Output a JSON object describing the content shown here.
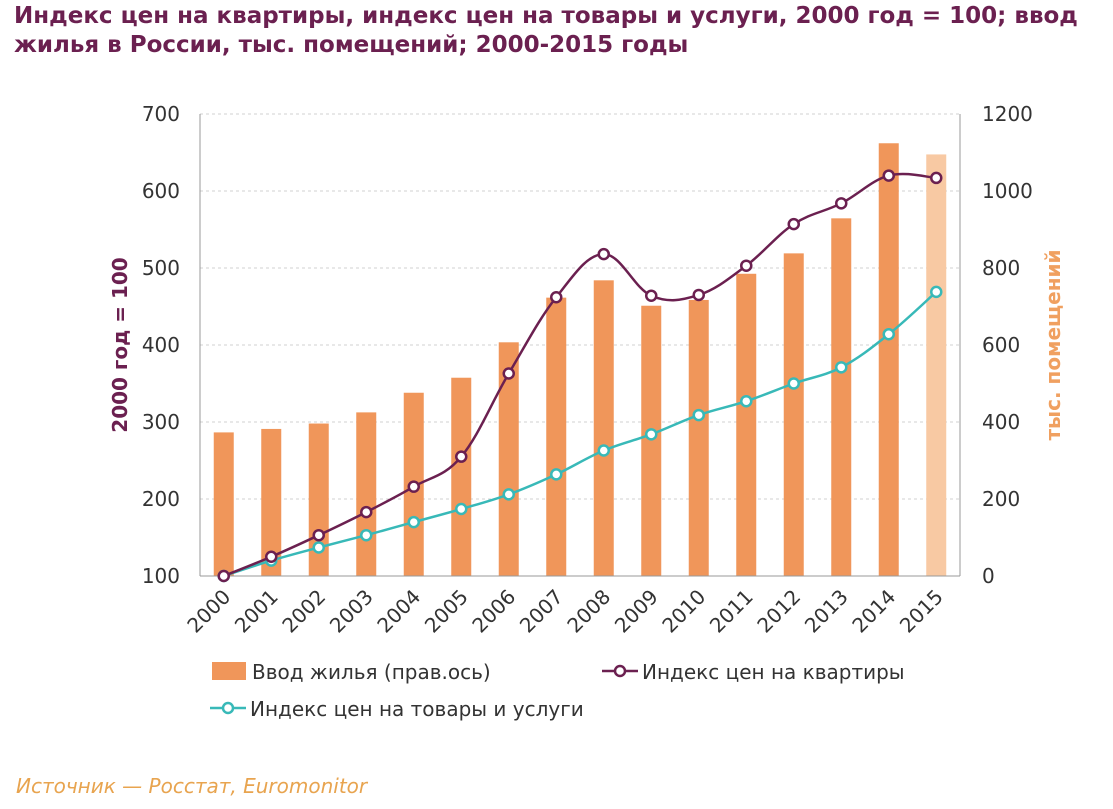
{
  "title": "Индекс цен на квартиры, индекс цен на товары и услуги, 2000 год = 100; ввод жилья в России, тыс. помещений; 2000-2015 годы",
  "source": "Источник — Росстат, Euromonitor",
  "colors": {
    "bar": "#f0965a",
    "bar_projected": "#f8c9a3",
    "apartments_line": "#6b2050",
    "goods_line": "#38b9b8",
    "title": "#6b2050",
    "right_axis_title": "#f0a060",
    "grid": "#d0d0d0"
  },
  "chart_data": {
    "type": "bar+line",
    "x": [
      "2000",
      "2001",
      "2002",
      "2003",
      "2004",
      "2005",
      "2006",
      "2007",
      "2008",
      "2009",
      "2010",
      "2011",
      "2012",
      "2013",
      "2014",
      "2015"
    ],
    "y_left": {
      "label": "2000 год = 100",
      "range": [
        100,
        700
      ],
      "ticks": [
        100,
        200,
        300,
        400,
        500,
        600,
        700
      ]
    },
    "y_right": {
      "label": "тыс. помещений",
      "range": [
        0,
        1200
      ],
      "ticks": [
        0,
        200,
        400,
        600,
        800,
        1000,
        1200
      ]
    },
    "grid": true,
    "legend_position": "bottom",
    "series": [
      {
        "name": "Ввод жилья (прав.ось)",
        "type": "bar",
        "axis": "right",
        "values": [
          373,
          382,
          396,
          425,
          476,
          515,
          607,
          723,
          768,
          702,
          717,
          785,
          838,
          929,
          1124,
          1095
        ]
      },
      {
        "name": "Индекс цен на квартиры",
        "type": "line",
        "axis": "left",
        "values": [
          100,
          125,
          153,
          183,
          216,
          255,
          363,
          462,
          518,
          464,
          465,
          503,
          557,
          584,
          620,
          617
        ]
      },
      {
        "name": "Индекс цен на товары и услуги",
        "type": "line",
        "axis": "left",
        "values": [
          100,
          120,
          137,
          153,
          170,
          187,
          206,
          232,
          263,
          284,
          309,
          327,
          350,
          371,
          414,
          469
        ]
      }
    ]
  }
}
